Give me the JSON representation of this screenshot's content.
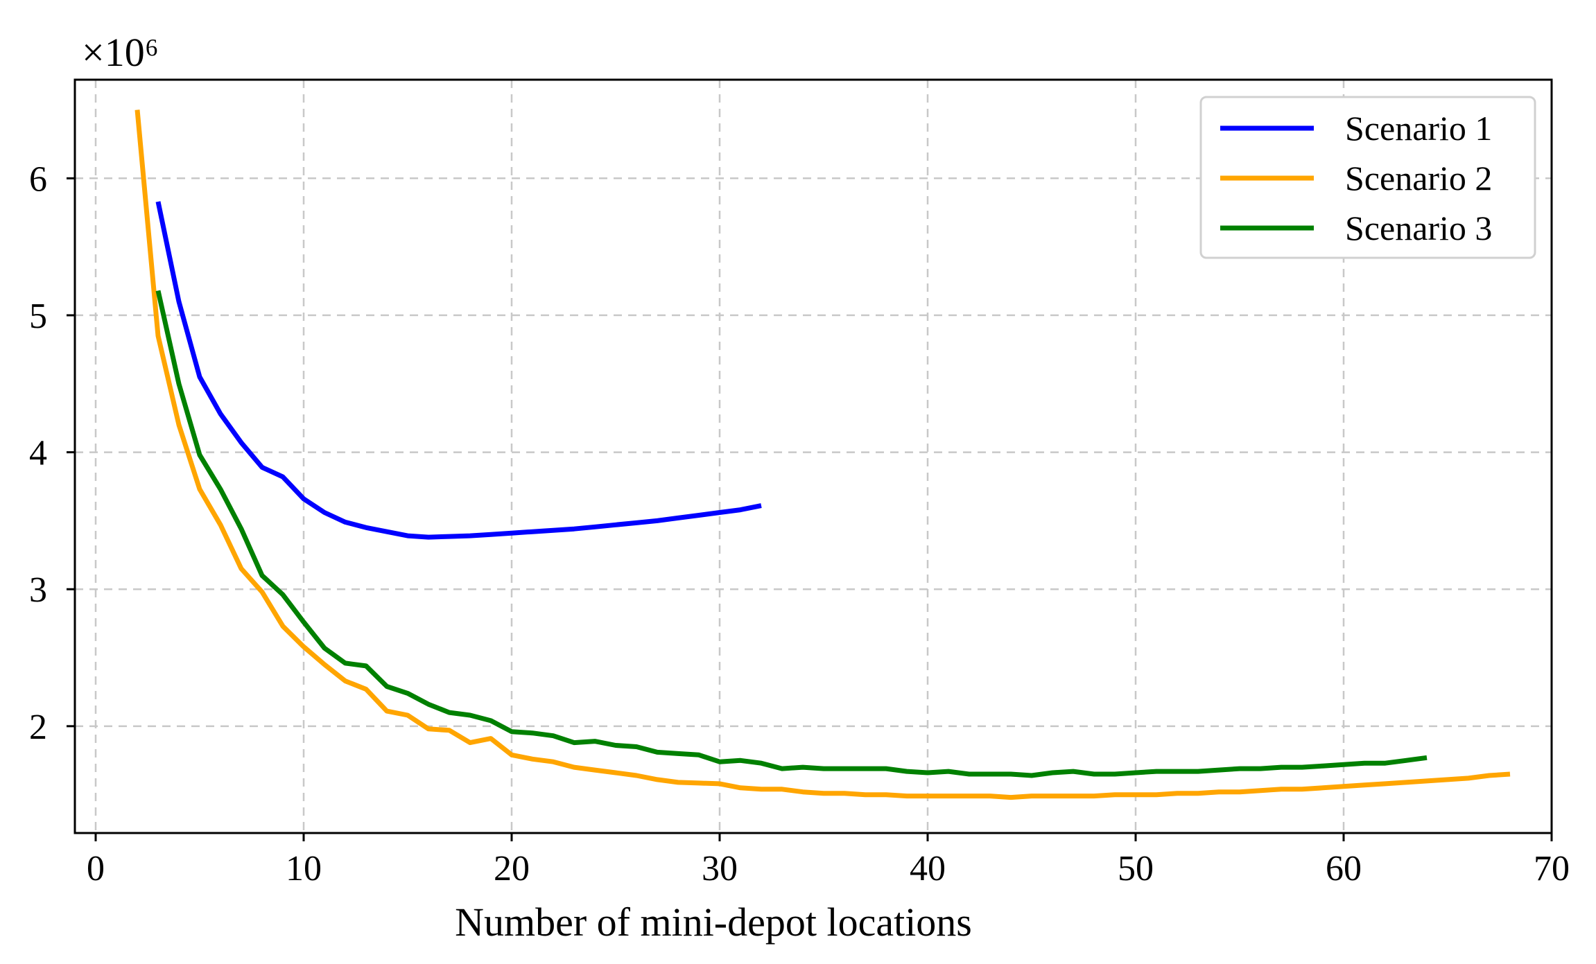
{
  "chart_data": {
    "type": "line",
    "title": "",
    "xlabel": "Number of mini-depot locations",
    "ylabel": "",
    "y_scale_label": "×10⁶",
    "xlim": [
      -1,
      70
    ],
    "ylim": [
      1.22,
      6.72
    ],
    "x_ticks": [
      0,
      10,
      20,
      30,
      40,
      50,
      60,
      70
    ],
    "y_ticks": [
      2,
      3,
      4,
      5,
      6
    ],
    "x_tick_labels": [
      "0",
      "10",
      "20",
      "30",
      "40",
      "50",
      "60",
      "70"
    ],
    "y_tick_labels": [
      "2",
      "3",
      "4",
      "5",
      "6"
    ],
    "grid": true,
    "legend_position": "top-right",
    "series": [
      {
        "name": "Scenario 1",
        "color": "#0000ff",
        "x": [
          3,
          4,
          5,
          6,
          7,
          8,
          9,
          10,
          11,
          12,
          13,
          14,
          15,
          16,
          17,
          18,
          19,
          20,
          21,
          22,
          23,
          24,
          25,
          26,
          27,
          28,
          29,
          30,
          31,
          32
        ],
        "y": [
          5.83,
          5.1,
          4.55,
          4.28,
          4.07,
          3.89,
          3.82,
          3.66,
          3.56,
          3.49,
          3.45,
          3.42,
          3.39,
          3.38,
          3.385,
          3.39,
          3.4,
          3.41,
          3.42,
          3.43,
          3.44,
          3.455,
          3.47,
          3.485,
          3.5,
          3.52,
          3.54,
          3.56,
          3.58,
          3.61
        ]
      },
      {
        "name": "Scenario 2",
        "color": "#ffa500",
        "x": [
          2,
          3,
          4,
          5,
          6,
          7,
          8,
          9,
          10,
          11,
          12,
          13,
          14,
          15,
          16,
          17,
          18,
          19,
          20,
          21,
          22,
          23,
          24,
          25,
          26,
          27,
          28,
          29,
          30,
          31,
          32,
          33,
          34,
          35,
          36,
          37,
          38,
          39,
          40,
          41,
          42,
          43,
          44,
          45,
          46,
          47,
          48,
          49,
          50,
          51,
          52,
          53,
          54,
          55,
          56,
          57,
          58,
          59,
          60,
          61,
          62,
          63,
          64,
          65,
          66,
          67,
          68
        ],
        "y": [
          6.5,
          4.85,
          4.2,
          3.73,
          3.47,
          3.15,
          2.98,
          2.73,
          2.58,
          2.45,
          2.33,
          2.27,
          2.11,
          2.08,
          1.98,
          1.97,
          1.88,
          1.91,
          1.79,
          1.76,
          1.74,
          1.7,
          1.68,
          1.66,
          1.64,
          1.61,
          1.59,
          1.585,
          1.58,
          1.55,
          1.54,
          1.54,
          1.52,
          1.51,
          1.51,
          1.5,
          1.5,
          1.49,
          1.49,
          1.49,
          1.49,
          1.49,
          1.48,
          1.49,
          1.49,
          1.49,
          1.49,
          1.5,
          1.5,
          1.5,
          1.51,
          1.51,
          1.52,
          1.52,
          1.53,
          1.54,
          1.54,
          1.55,
          1.56,
          1.57,
          1.58,
          1.59,
          1.6,
          1.61,
          1.62,
          1.64,
          1.65
        ]
      },
      {
        "name": "Scenario 3",
        "color": "#008000",
        "x": [
          3,
          4,
          5,
          6,
          7,
          8,
          9,
          10,
          11,
          12,
          13,
          14,
          15,
          16,
          17,
          18,
          19,
          20,
          21,
          22,
          23,
          24,
          25,
          26,
          27,
          28,
          29,
          30,
          31,
          32,
          33,
          34,
          35,
          36,
          37,
          38,
          39,
          40,
          41,
          42,
          43,
          44,
          45,
          46,
          47,
          48,
          49,
          50,
          51,
          52,
          53,
          54,
          55,
          56,
          57,
          58,
          59,
          60,
          61,
          62,
          63,
          64
        ],
        "y": [
          5.18,
          4.5,
          3.98,
          3.73,
          3.44,
          3.1,
          2.96,
          2.76,
          2.57,
          2.46,
          2.44,
          2.29,
          2.24,
          2.16,
          2.1,
          2.08,
          2.04,
          1.96,
          1.95,
          1.93,
          1.88,
          1.89,
          1.86,
          1.85,
          1.81,
          1.8,
          1.79,
          1.74,
          1.75,
          1.73,
          1.69,
          1.7,
          1.69,
          1.69,
          1.69,
          1.69,
          1.67,
          1.66,
          1.67,
          1.65,
          1.65,
          1.65,
          1.64,
          1.66,
          1.67,
          1.65,
          1.65,
          1.66,
          1.67,
          1.67,
          1.67,
          1.68,
          1.69,
          1.69,
          1.7,
          1.7,
          1.71,
          1.72,
          1.73,
          1.73,
          1.75,
          1.77
        ]
      }
    ]
  }
}
